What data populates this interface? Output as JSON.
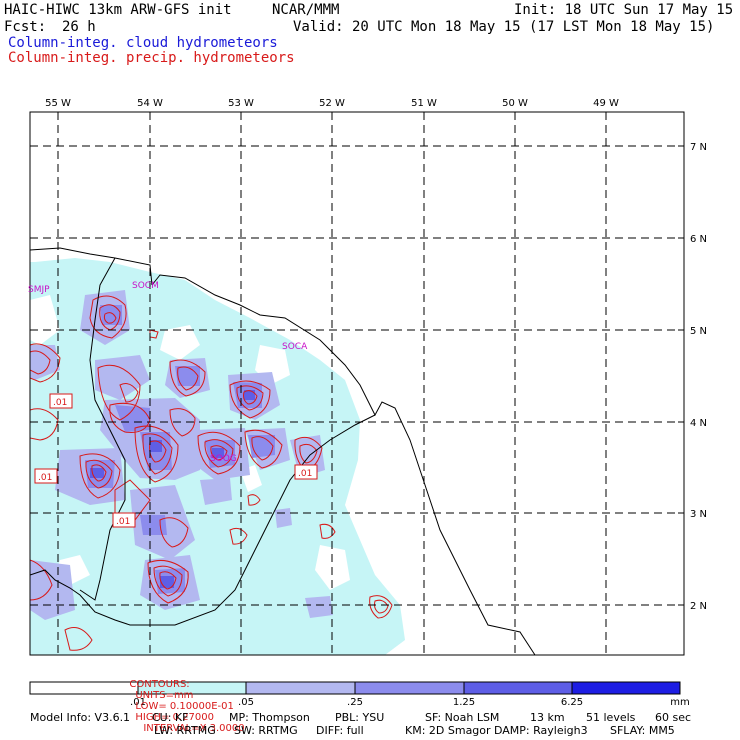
{
  "header": {
    "model": "HAIC-HIWC 13km ARW-GFS init",
    "org": "NCAR/MMM",
    "init": "Init: 18 UTC Sun 17 May 15",
    "fcst_label": "Fcst:",
    "fcst_value": "26 h",
    "valid": "Valid: 20 UTC Mon 18 May 15 (17 LST Mon 18 May 15)",
    "field1": "Column-integ. cloud hydrometeors",
    "field2": "Column-integ. precip. hydrometeors"
  },
  "axes": {
    "lon_labels": [
      "55 W",
      "54 W",
      "53 W",
      "52 W",
      "51 W",
      "50 W",
      "49 W"
    ],
    "lat_labels": [
      "7 N",
      "6 N",
      "5 N",
      "4 N",
      "3 N",
      "2 N"
    ]
  },
  "stations": [
    "SMJP",
    "SOCM",
    "SOCA",
    "SOOG"
  ],
  "contour_labels": [
    ".01",
    ".01",
    ".01",
    ".01"
  ],
  "contours_info": {
    "prefix": "CONTOURS:",
    "units": "UNITS=mm",
    "low": "LOW= 0.10000E-01",
    "high": "HIGH= 0.27000",
    "interval": "INTERVAL=X 3.0000"
  },
  "colorbar": {
    "tick_labels": [
      ".01",
      ".05",
      ".25",
      "1.25",
      "6.25"
    ],
    "unit": "mm",
    "colors": [
      "#ffffff",
      "#c6f5f6",
      "#b3b8f0",
      "#8c8ced",
      "#5e5ee6",
      "#1d1de3"
    ]
  },
  "model_info": {
    "line1": [
      "Model Info: V3.6.1",
      "CU: KF",
      "MP: Thompson",
      "PBL: YSU",
      "SF: Noah LSM",
      "13 km",
      "51 levels",
      "60 sec"
    ],
    "line2": [
      "LW: RRTMG",
      "SW: RRTMG",
      "DIFF: full",
      "KM: 2D Smagor",
      "DAMP: Rayleigh3",
      "SFLAY: MM5"
    ]
  }
}
